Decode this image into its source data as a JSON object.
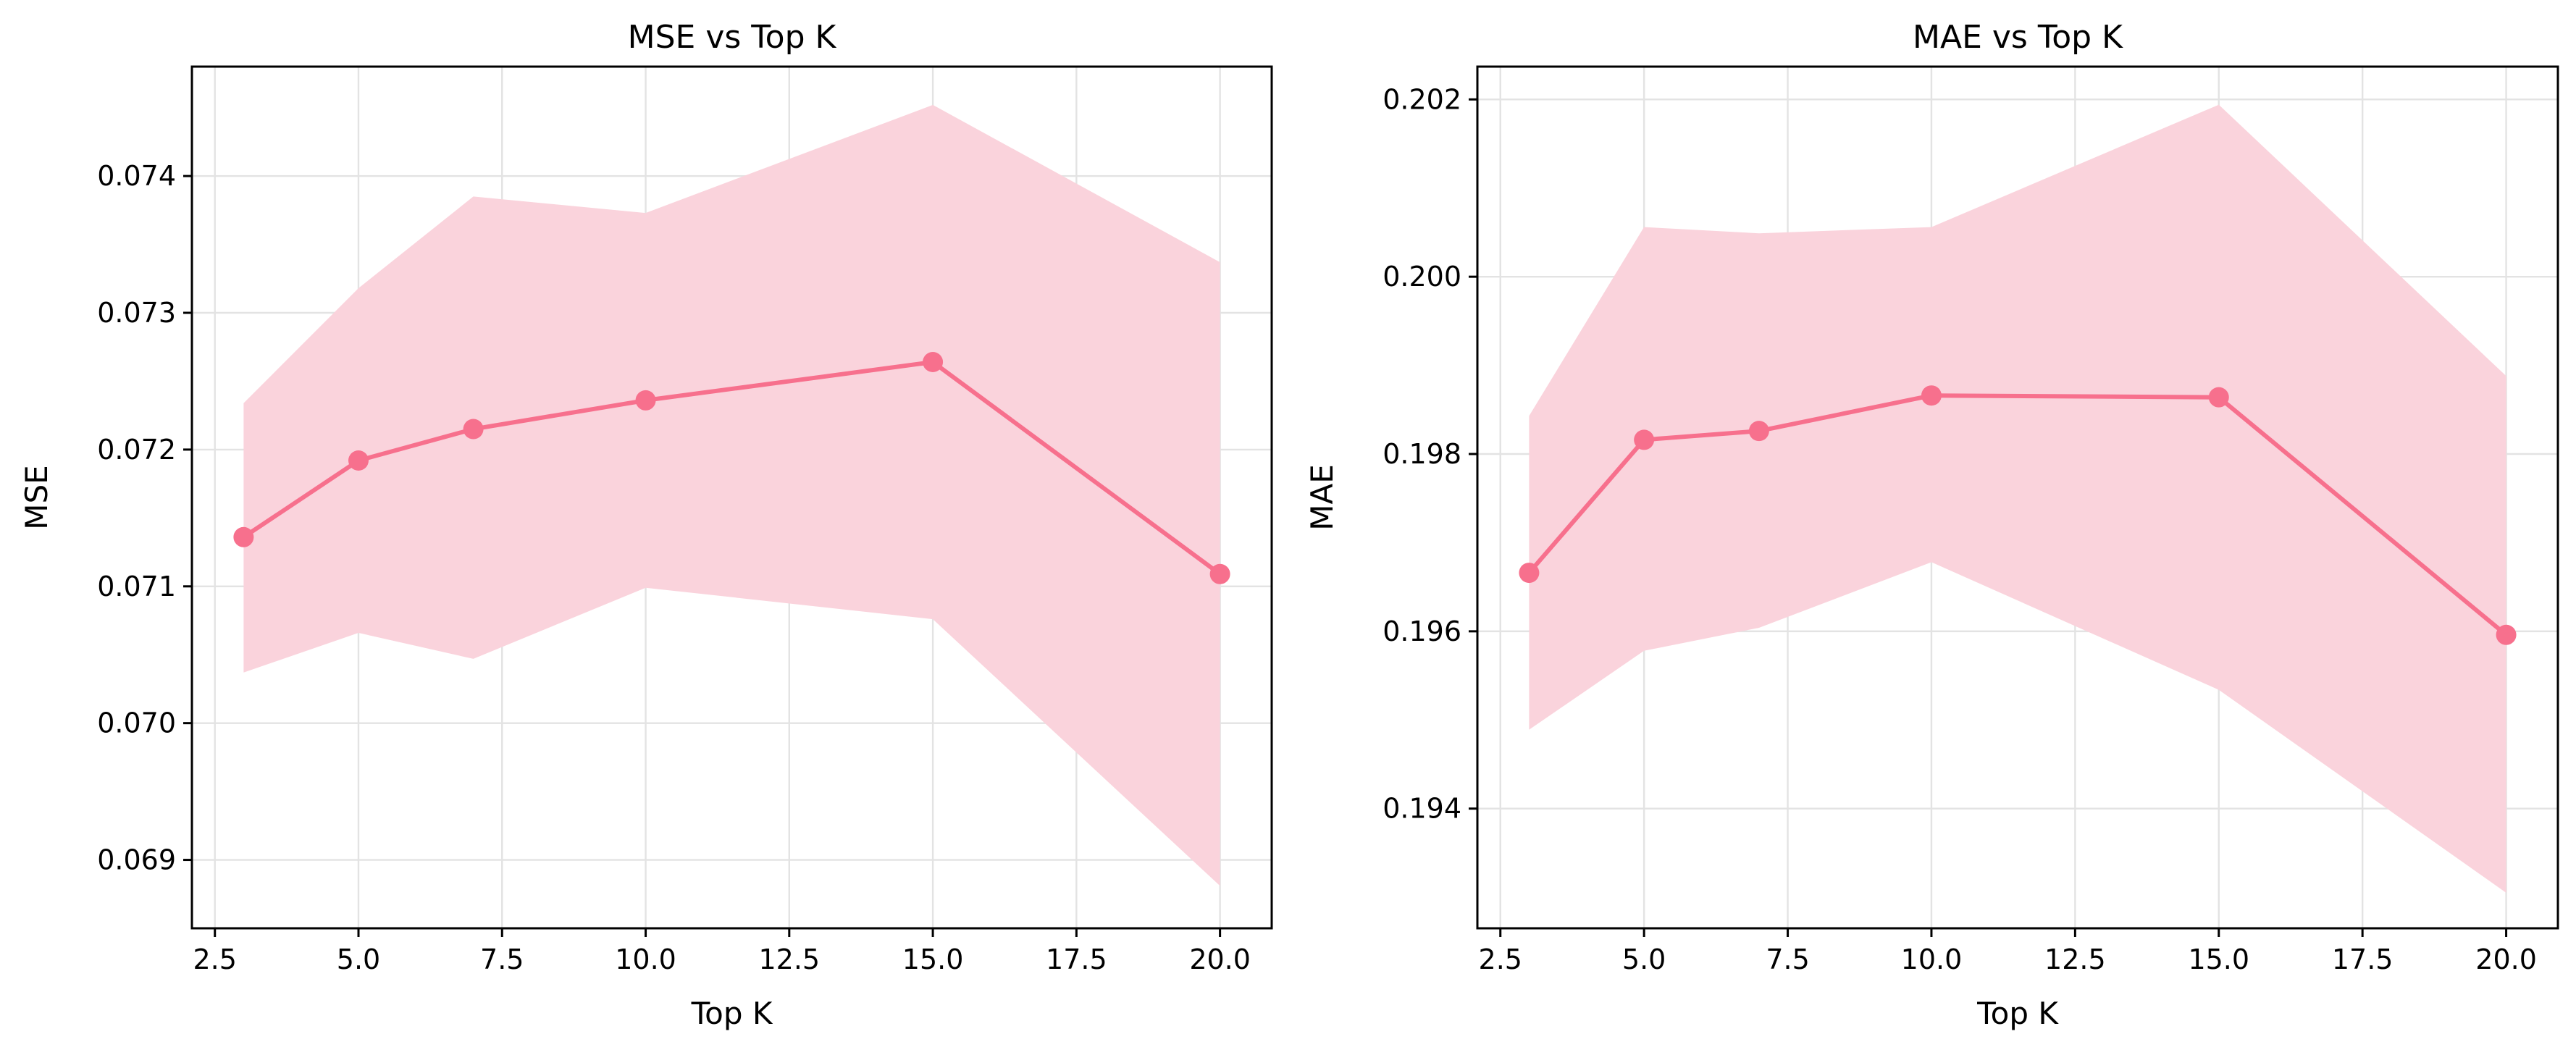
{
  "chart_data": [
    {
      "type": "line",
      "title": "MSE vs Top K",
      "xlabel": "Top K",
      "ylabel": "MSE",
      "x": [
        3,
        5,
        7,
        10,
        15,
        20
      ],
      "series": [
        {
          "name": "MSE",
          "values": [
            0.07136,
            0.07192,
            0.07215,
            0.07236,
            0.07264,
            0.07109
          ],
          "band_upper": [
            0.07234,
            0.07318,
            0.07385,
            0.07373,
            0.07452,
            0.07337
          ],
          "band_lower": [
            0.07037,
            0.07066,
            0.07047,
            0.07099,
            0.07076,
            0.06881
          ],
          "color": "#f7708d",
          "band_color": "#fad3dc"
        }
      ],
      "xlim": [
        2.1,
        20.9
      ],
      "ylim": [
        0.0685,
        0.0748
      ],
      "xticks": [
        2.5,
        5.0,
        7.5,
        10.0,
        12.5,
        15.0,
        17.5,
        20.0
      ],
      "xtick_labels": [
        "2.5",
        "5.0",
        "7.5",
        "10.0",
        "12.5",
        "15.0",
        "17.5",
        "20.0"
      ],
      "yticks": [
        0.069,
        0.07,
        0.071,
        0.072,
        0.073,
        0.074
      ],
      "ytick_labels": [
        "0.069",
        "0.070",
        "0.071",
        "0.072",
        "0.073",
        "0.074"
      ],
      "grid": true
    },
    {
      "type": "line",
      "title": "MAE vs Top K",
      "xlabel": "Top K",
      "ylabel": "MAE",
      "x": [
        3,
        5,
        7,
        10,
        15,
        20
      ],
      "series": [
        {
          "name": "MAE",
          "values": [
            0.19666,
            0.19816,
            0.19826,
            0.19866,
            0.19864,
            0.19596
          ],
          "band_upper": [
            0.19843,
            0.20056,
            0.20049,
            0.20056,
            0.20194,
            0.19888
          ],
          "band_lower": [
            0.19489,
            0.19578,
            0.19604,
            0.19678,
            0.19534,
            0.19305
          ],
          "color": "#f7708d",
          "band_color": "#fad3dc"
        }
      ],
      "xlim": [
        2.1,
        20.9
      ],
      "ylim": [
        0.19265,
        0.20237
      ],
      "xticks": [
        2.5,
        5.0,
        7.5,
        10.0,
        12.5,
        15.0,
        17.5,
        20.0
      ],
      "xtick_labels": [
        "2.5",
        "5.0",
        "7.5",
        "10.0",
        "12.5",
        "15.0",
        "17.5",
        "20.0"
      ],
      "yticks": [
        0.194,
        0.196,
        0.198,
        0.2,
        0.202
      ],
      "ytick_labels": [
        "0.194",
        "0.196",
        "0.198",
        "0.200",
        "0.202"
      ],
      "grid": true
    }
  ]
}
